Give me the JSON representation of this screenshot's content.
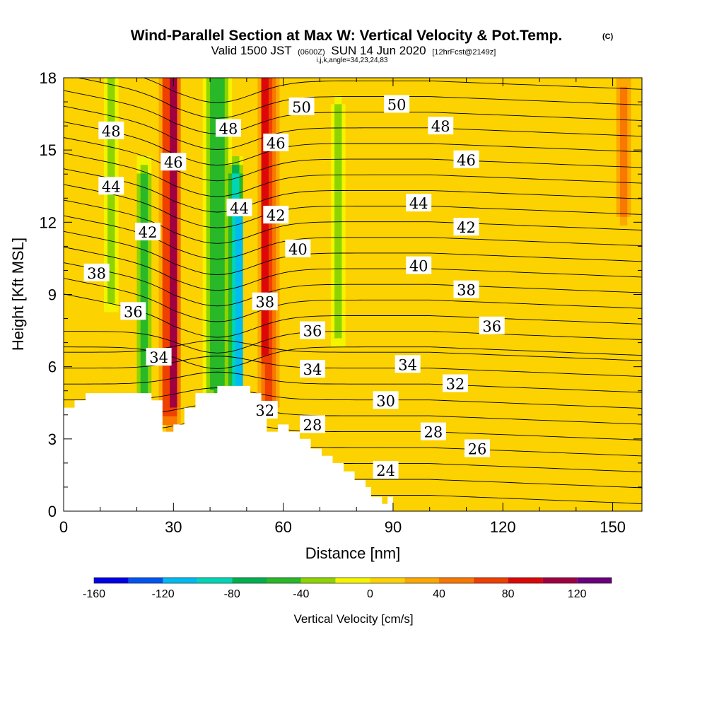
{
  "chart_data": {
    "type": "heatmap",
    "title": "Wind-Parallel Section at Max W: Vertical Velocity & Pot.Temp.",
    "title_mark": "(C)",
    "subtitle": {
      "valid": "Valid 1500 JST",
      "zulu": "(0600Z)",
      "date": "SUN 14 Jun 2020",
      "fcst": "[12hrFcst@2149z]"
    },
    "indices": "i,j,k,angle=34,23,24,83",
    "xlabel": "Distance [nm]",
    "ylabel": "Height [Kft MSL]",
    "xlim": [
      0,
      158
    ],
    "ylim": [
      0,
      18
    ],
    "x_ticks": [
      "0",
      "30",
      "60",
      "90",
      "120",
      "150"
    ],
    "x_tick_values": [
      0,
      30,
      60,
      90,
      120,
      150
    ],
    "y_ticks": [
      "0",
      "3",
      "6",
      "9",
      "12",
      "15",
      "18"
    ],
    "y_tick_values": [
      0,
      3,
      6,
      9,
      12,
      15,
      18
    ],
    "colorbar": {
      "label": "Vertical Velocity [cm/s]",
      "range": [
        -160,
        140
      ],
      "step": 20,
      "tick_labels": [
        "-160",
        "-120",
        "-80",
        "-40",
        "0",
        "40",
        "80",
        "120"
      ],
      "tick_values": [
        -160,
        -120,
        -80,
        -40,
        0,
        40,
        80,
        120
      ],
      "colors": [
        "#0000e6",
        "#0055f0",
        "#00bbf0",
        "#00d5b5",
        "#00b050",
        "#28b828",
        "#8ed400",
        "#f4f400",
        "#fcd200",
        "#fca800",
        "#f87800",
        "#f04000",
        "#dc0808",
        "#a00040",
        "#6a0080"
      ]
    },
    "velocity_field": {
      "description": "approximate vertical velocity bands (cm/s)",
      "background": 5,
      "features": [
        {
          "x": 48,
          "y0": 5.0,
          "y1": 12.0,
          "width": 2.2,
          "w": -150
        },
        {
          "x": 47,
          "y0": 5.0,
          "y1": 14.0,
          "width": 4.5,
          "w": -90
        },
        {
          "x": 42,
          "y0": 5.0,
          "y1": 18.0,
          "width": 9.0,
          "w": -50
        },
        {
          "x": 30,
          "y0": 4.5,
          "y1": 18.0,
          "width": 4.0,
          "w": 120
        },
        {
          "x": 29,
          "y0": 4.0,
          "y1": 18.0,
          "width": 7.0,
          "w": 80
        },
        {
          "x": 55,
          "y0": 6.5,
          "y1": 18.0,
          "width": 3.0,
          "w": 110
        },
        {
          "x": 56,
          "y0": 4.5,
          "y1": 18.0,
          "width": 6.0,
          "w": 70
        },
        {
          "x": 22,
          "y0": 4.5,
          "y1": 14.0,
          "width": 4.0,
          "w": -50
        },
        {
          "x": 13,
          "y0": 9.0,
          "y1": 18.0,
          "width": 4.0,
          "w": -40
        },
        {
          "x": 75,
          "y0": 7.5,
          "y1": 16.5,
          "width": 4.0,
          "w": -40
        },
        {
          "x": 153,
          "y0": 12.5,
          "y1": 17.5,
          "width": 6.0,
          "w": 50
        },
        {
          "x": 100,
          "y0": 0.5,
          "y1": 18.0,
          "width": 30.0,
          "w": 20
        }
      ]
    },
    "terrain": [
      [
        0,
        4.3
      ],
      [
        3,
        4.3
      ],
      [
        3,
        4.6
      ],
      [
        6,
        4.6
      ],
      [
        6,
        4.9
      ],
      [
        24,
        4.9
      ],
      [
        24,
        4.6
      ],
      [
        27,
        4.6
      ],
      [
        27,
        3.3
      ],
      [
        30,
        3.3
      ],
      [
        30,
        3.6
      ],
      [
        33,
        3.6
      ],
      [
        33,
        4.3
      ],
      [
        36,
        4.3
      ],
      [
        36,
        4.9
      ],
      [
        42,
        4.9
      ],
      [
        42,
        5.2
      ],
      [
        51,
        5.2
      ],
      [
        51,
        4.9
      ],
      [
        54,
        4.9
      ],
      [
        54,
        4.0
      ],
      [
        55.5,
        4.0
      ],
      [
        55.5,
        3.3
      ],
      [
        58.5,
        3.3
      ],
      [
        58.5,
        3.6
      ],
      [
        61.5,
        3.6
      ],
      [
        61.5,
        3.3
      ],
      [
        64.5,
        3.3
      ],
      [
        64.5,
        3.0
      ],
      [
        67.5,
        3.0
      ],
      [
        67.5,
        2.6
      ],
      [
        70.5,
        2.6
      ],
      [
        70.5,
        2.3
      ],
      [
        73.5,
        2.3
      ],
      [
        73.5,
        2.0
      ],
      [
        76.5,
        2.0
      ],
      [
        76.5,
        1.65
      ],
      [
        79.5,
        1.65
      ],
      [
        79.5,
        1.3
      ],
      [
        82.5,
        1.3
      ],
      [
        82.5,
        1.0
      ],
      [
        84,
        1.0
      ],
      [
        84,
        0.6
      ],
      [
        87,
        0.6
      ],
      [
        87,
        0.3
      ],
      [
        88.5,
        0.3
      ],
      [
        88.5,
        0.6
      ],
      [
        90,
        0.6
      ],
      [
        90,
        0
      ],
      [
        0,
        0
      ]
    ],
    "theta_lines": {
      "min": 24,
      "max": 51,
      "interval": 1
    },
    "isentrope_levels": [
      24,
      26,
      28,
      30,
      32,
      34,
      36,
      38,
      40,
      42,
      44,
      46,
      48,
      50
    ],
    "contour_labels": [
      {
        "text": "50",
        "x": 65,
        "y": 16.8
      },
      {
        "text": "50",
        "x": 91,
        "y": 16.9
      },
      {
        "text": "48",
        "x": 13,
        "y": 15.8
      },
      {
        "text": "48",
        "x": 45,
        "y": 15.9
      },
      {
        "text": "48",
        "x": 103,
        "y": 16.0
      },
      {
        "text": "46",
        "x": 58,
        "y": 15.3
      },
      {
        "text": "46",
        "x": 30,
        "y": 14.5
      },
      {
        "text": "46",
        "x": 110,
        "y": 14.6
      },
      {
        "text": "44",
        "x": 13,
        "y": 13.5
      },
      {
        "text": "44",
        "x": 48,
        "y": 12.6
      },
      {
        "text": "44",
        "x": 97,
        "y": 12.8
      },
      {
        "text": "42",
        "x": 58,
        "y": 12.3
      },
      {
        "text": "42",
        "x": 23,
        "y": 11.6
      },
      {
        "text": "42",
        "x": 110,
        "y": 11.8
      },
      {
        "text": "40",
        "x": 64,
        "y": 10.9
      },
      {
        "text": "40",
        "x": 97,
        "y": 10.2
      },
      {
        "text": "38",
        "x": 9,
        "y": 9.9
      },
      {
        "text": "38",
        "x": 55,
        "y": 8.7
      },
      {
        "text": "38",
        "x": 110,
        "y": 9.2
      },
      {
        "text": "36",
        "x": 19,
        "y": 8.3
      },
      {
        "text": "36",
        "x": 68,
        "y": 7.5
      },
      {
        "text": "36",
        "x": 117,
        "y": 7.7
      },
      {
        "text": "34",
        "x": 26,
        "y": 6.4
      },
      {
        "text": "34",
        "x": 68,
        "y": 5.9
      },
      {
        "text": "34",
        "x": 94,
        "y": 6.1
      },
      {
        "text": "32",
        "x": 55,
        "y": 4.2
      },
      {
        "text": "32",
        "x": 107,
        "y": 5.3
      },
      {
        "text": "30",
        "x": 88,
        "y": 4.6
      },
      {
        "text": "28",
        "x": 68,
        "y": 3.6
      },
      {
        "text": "28",
        "x": 101,
        "y": 3.3
      },
      {
        "text": "26",
        "x": 113,
        "y": 2.6
      },
      {
        "text": "24",
        "x": 88,
        "y": 1.7
      }
    ]
  }
}
